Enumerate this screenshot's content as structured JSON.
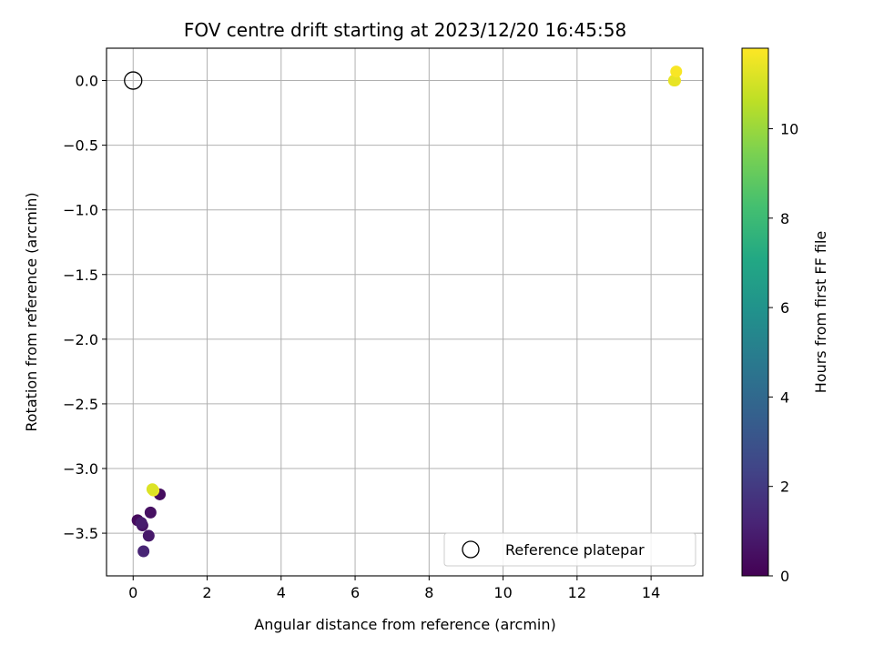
{
  "chart_data": {
    "type": "scatter",
    "title": "FOV centre drift starting at 2023/12/20 16:45:58",
    "xlabel": "Angular distance from reference (arcmin)",
    "ylabel": "Rotation from reference (arcmin)",
    "xlim": [
      -0.72,
      15.4
    ],
    "ylim": [
      -3.83,
      0.25
    ],
    "xticks": [
      "0",
      "2",
      "4",
      "6",
      "8",
      "10",
      "12",
      "14"
    ],
    "xtick_values": [
      0,
      2,
      4,
      6,
      8,
      10,
      12,
      14
    ],
    "yticks": [
      "0.0",
      "−0.5",
      "−1.0",
      "−1.5",
      "−2.0",
      "−2.5",
      "−3.0",
      "−3.5"
    ],
    "ytick_values": [
      0,
      -0.5,
      -1,
      -1.5,
      -2,
      -2.5,
      -3,
      -3.5
    ],
    "grid": true,
    "legend": {
      "entries": [
        "Reference platepar"
      ],
      "placement": "lower-right"
    },
    "reference": {
      "name": "Reference platepar",
      "x": 0,
      "y": 0
    },
    "colorbar": {
      "label": "Hours from first FF file",
      "range": [
        0,
        11.8
      ],
      "ticks": [
        "0",
        "2",
        "4",
        "6",
        "8",
        "10"
      ],
      "tick_values": [
        0,
        2,
        4,
        6,
        8,
        10
      ],
      "colormap": "viridis"
    },
    "points": [
      {
        "x": 0.12,
        "y": -3.4,
        "hours": 0.3
      },
      {
        "x": 0.25,
        "y": -3.44,
        "hours": 0.6
      },
      {
        "x": 0.22,
        "y": -3.42,
        "hours": 0.9
      },
      {
        "x": 0.28,
        "y": -3.64,
        "hours": 1.2
      },
      {
        "x": 0.42,
        "y": -3.52,
        "hours": 0.8
      },
      {
        "x": 0.47,
        "y": -3.34,
        "hours": 0.5
      },
      {
        "x": 0.72,
        "y": -3.2,
        "hours": 0.4
      },
      {
        "x": 0.55,
        "y": -3.17,
        "hours": 11.5
      },
      {
        "x": 0.52,
        "y": -3.16,
        "hours": 11.2
      },
      {
        "x": 14.65,
        "y": 0.0,
        "hours": 11.6
      },
      {
        "x": 14.62,
        "y": 0.0,
        "hours": 11.4
      },
      {
        "x": 14.68,
        "y": 0.07,
        "hours": 11.7
      }
    ]
  }
}
